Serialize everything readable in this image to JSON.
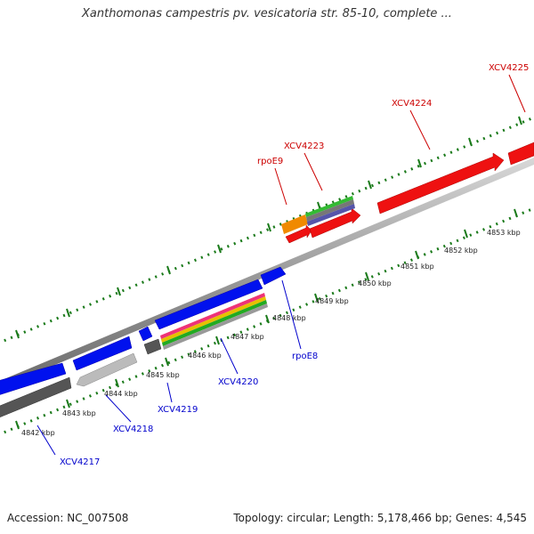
{
  "title": "Xanthomonas campestris pv. vesicatoria str. 85-10, complete ...",
  "footer": {
    "accession": "Accession: NC_007508",
    "stats": "Topology: circular; Length: 5,178,466 bp; Genes: 4,545"
  },
  "colors": {
    "forward_label": "#cc0000",
    "reverse_label": "#0000cc",
    "backbone": "#888888",
    "tick": "#1a7a1a"
  },
  "scale_labels": [
    "4842 kbp",
    "4843 kbp",
    "4844 kbp",
    "4845 kbp",
    "4846 kbp",
    "4847 kbp",
    "4848 kbp",
    "4849 kbp",
    "4850 kbp",
    "4851 kbp",
    "4852 kbp",
    "4853 kbp"
  ],
  "forward_genes": [
    "rpoE9",
    "XCV4223",
    "XCV4224",
    "XCV4225"
  ],
  "reverse_genes": [
    "XCV4217",
    "XCV4218",
    "XCV4219",
    "XCV4220",
    "rpoE8"
  ]
}
